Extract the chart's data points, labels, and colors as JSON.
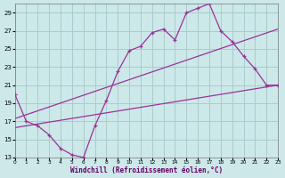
{
  "bg_color": "#cce8e8",
  "grid_color": "#aacccc",
  "line_color": "#993399",
  "xlabel": "Windchill (Refroidissement éolien,°C)",
  "xlim": [
    0,
    23
  ],
  "ylim": [
    13,
    30
  ],
  "yticks": [
    13,
    15,
    17,
    19,
    21,
    23,
    25,
    27,
    29
  ],
  "xticks": [
    0,
    1,
    2,
    3,
    4,
    5,
    6,
    7,
    8,
    9,
    10,
    11,
    12,
    13,
    14,
    15,
    16,
    17,
    18,
    19,
    20,
    21,
    22,
    23
  ],
  "curve_x": [
    0,
    1,
    2,
    3,
    4,
    5,
    6,
    7,
    8,
    9,
    10,
    11,
    12,
    13,
    14,
    15,
    16,
    17,
    18,
    19,
    20,
    21,
    22,
    23
  ],
  "curve_y": [
    20.0,
    17.0,
    16.5,
    15.5,
    14.0,
    13.3,
    13.0,
    16.5,
    19.3,
    22.5,
    24.8,
    25.3,
    26.8,
    27.2,
    26.0,
    29.0,
    29.5,
    30.0,
    27.0,
    25.8,
    24.2,
    22.8,
    21.0,
    21.0
  ],
  "line1_x": [
    0,
    23
  ],
  "line1_y": [
    17.3,
    27.2
  ],
  "line2_x": [
    0,
    23
  ],
  "line2_y": [
    16.3,
    21.0
  ]
}
